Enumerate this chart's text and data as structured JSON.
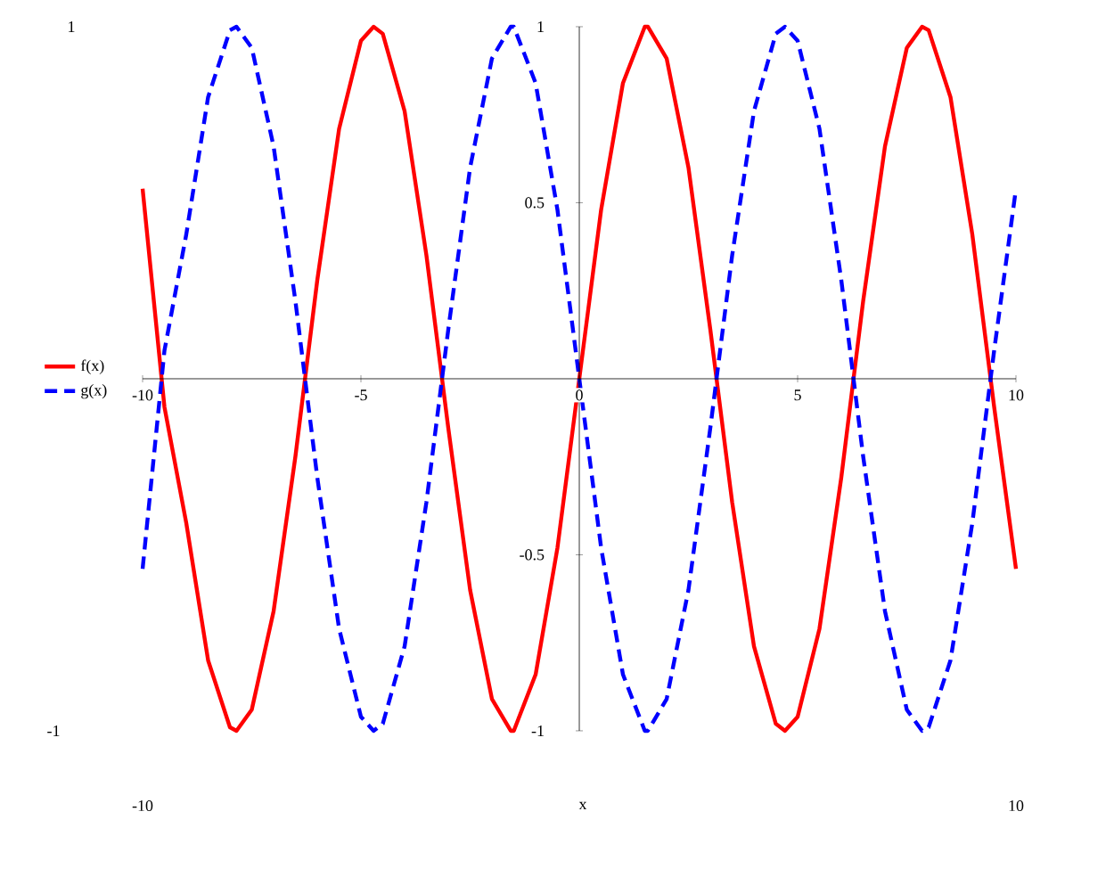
{
  "chart_data": {
    "type": "line",
    "xlabel": "x",
    "x": [
      -10,
      -9.5,
      -9,
      -8.5,
      -8,
      -7.85,
      -7.5,
      -7,
      -6.5,
      -6,
      -5.5,
      -5,
      -4.71,
      -4.5,
      -4,
      -3.5,
      -3,
      -2.5,
      -2,
      -1.57,
      -1.5,
      -1,
      -0.5,
      0,
      0.5,
      1,
      1.5,
      1.57,
      2,
      2.5,
      3,
      3.5,
      4,
      4.5,
      4.71,
      5,
      5.5,
      6,
      6.5,
      7,
      7.5,
      7.85,
      8,
      8.5,
      9,
      9.5,
      10
    ],
    "series": [
      {
        "name": "f(x)",
        "color": "#ff0000",
        "line_style": "solid",
        "values": [
          0.54,
          -0.08,
          -0.41,
          -0.8,
          -0.99,
          -1,
          -0.94,
          -0.66,
          -0.22,
          0.28,
          0.71,
          0.96,
          1,
          0.98,
          0.76,
          0.35,
          -0.14,
          -0.6,
          -0.91,
          -1,
          -1,
          -0.84,
          -0.48,
          0,
          0.48,
          0.84,
          1,
          1,
          0.91,
          0.6,
          0.14,
          -0.35,
          -0.76,
          -0.98,
          -1,
          -0.96,
          -0.71,
          -0.28,
          0.22,
          0.66,
          0.94,
          1,
          0.99,
          0.8,
          0.41,
          -0.08,
          -0.54
        ]
      },
      {
        "name": "g(x)",
        "color": "#0000ff",
        "line_style": "dashed",
        "values": [
          -0.54,
          0.08,
          0.41,
          0.8,
          0.99,
          1,
          0.94,
          0.66,
          0.22,
          -0.28,
          -0.71,
          -0.96,
          -1,
          -0.98,
          -0.76,
          -0.35,
          0.14,
          0.6,
          0.91,
          1,
          1,
          0.84,
          0.48,
          0,
          -0.48,
          -0.84,
          -1,
          -1,
          -0.91,
          -0.6,
          -0.14,
          0.35,
          0.76,
          0.98,
          1,
          0.96,
          0.71,
          0.28,
          -0.22,
          -0.66,
          -0.94,
          -1,
          -0.99,
          -0.8,
          -0.41,
          0.08,
          0.54
        ]
      }
    ],
    "xlim": [
      -10,
      10
    ],
    "ylim": [
      -1,
      1
    ],
    "xticks": [
      -10,
      -5,
      0,
      5,
      10
    ],
    "yticks": [
      -1,
      -0.5,
      0.5,
      1
    ],
    "grid": false,
    "legend": "left",
    "marker": "none",
    "annotations": [
      "1",
      "-1",
      "-10",
      "10"
    ]
  }
}
